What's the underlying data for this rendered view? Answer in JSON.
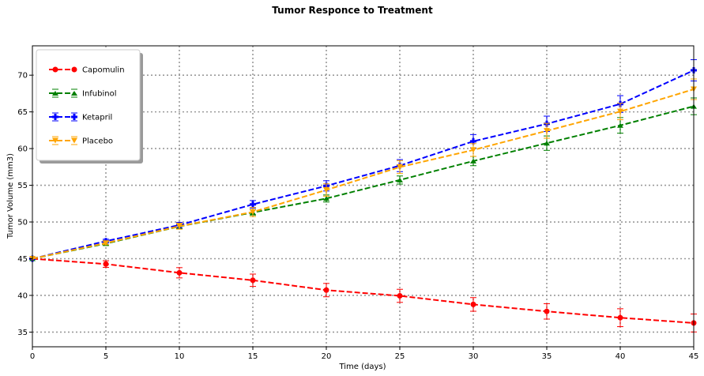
{
  "chart_data": {
    "type": "line",
    "title": "Tumor Responce to Treatment",
    "xlabel": "Time (days)",
    "ylabel": "Tumor Volume (mm3)",
    "xlim": [
      0,
      45
    ],
    "ylim": [
      33,
      74
    ],
    "x_ticks": [
      0,
      5,
      10,
      15,
      20,
      25,
      30,
      35,
      40,
      45
    ],
    "y_ticks": [
      35,
      40,
      45,
      50,
      55,
      60,
      65,
      70
    ],
    "grid": true,
    "legend_position": "top-left",
    "x": [
      0,
      5,
      10,
      15,
      20,
      25,
      30,
      35,
      40,
      45
    ],
    "series": [
      {
        "name": "Capomulin",
        "color": "#ff0000",
        "marker": "circle",
        "values": [
          45.0,
          44.27,
          43.08,
          42.06,
          40.72,
          39.94,
          38.77,
          37.82,
          36.96,
          36.24
        ],
        "errors": [
          0.0,
          0.45,
          0.7,
          0.84,
          0.91,
          0.89,
          0.93,
          1.05,
          1.22,
          1.22
        ]
      },
      {
        "name": "Infubinol",
        "color": "#008000",
        "marker": "caret",
        "values": [
          45.0,
          47.06,
          49.4,
          51.3,
          53.2,
          55.72,
          58.3,
          60.74,
          63.16,
          65.76
        ],
        "errors": [
          0.0,
          0.24,
          0.28,
          0.36,
          0.48,
          0.55,
          0.63,
          0.98,
          1.06,
          1.14
        ]
      },
      {
        "name": "Ketapril",
        "color": "#0000ff",
        "marker": "plus",
        "values": [
          45.0,
          47.39,
          49.58,
          52.4,
          54.92,
          57.68,
          60.99,
          63.37,
          66.07,
          70.66
        ],
        "errors": [
          0.0,
          0.26,
          0.36,
          0.52,
          0.7,
          0.82,
          0.92,
          1.05,
          1.14,
          1.45
        ]
      },
      {
        "name": "Placebo",
        "color": "#ffa500",
        "marker": "triangle-down",
        "values": [
          45.0,
          47.13,
          49.42,
          51.36,
          54.36,
          57.48,
          59.81,
          62.42,
          65.05,
          68.08
        ],
        "errors": [
          0.0,
          0.22,
          0.4,
          0.61,
          0.84,
          0.88,
          0.87,
          1.01,
          1.12,
          1.4
        ]
      }
    ]
  }
}
